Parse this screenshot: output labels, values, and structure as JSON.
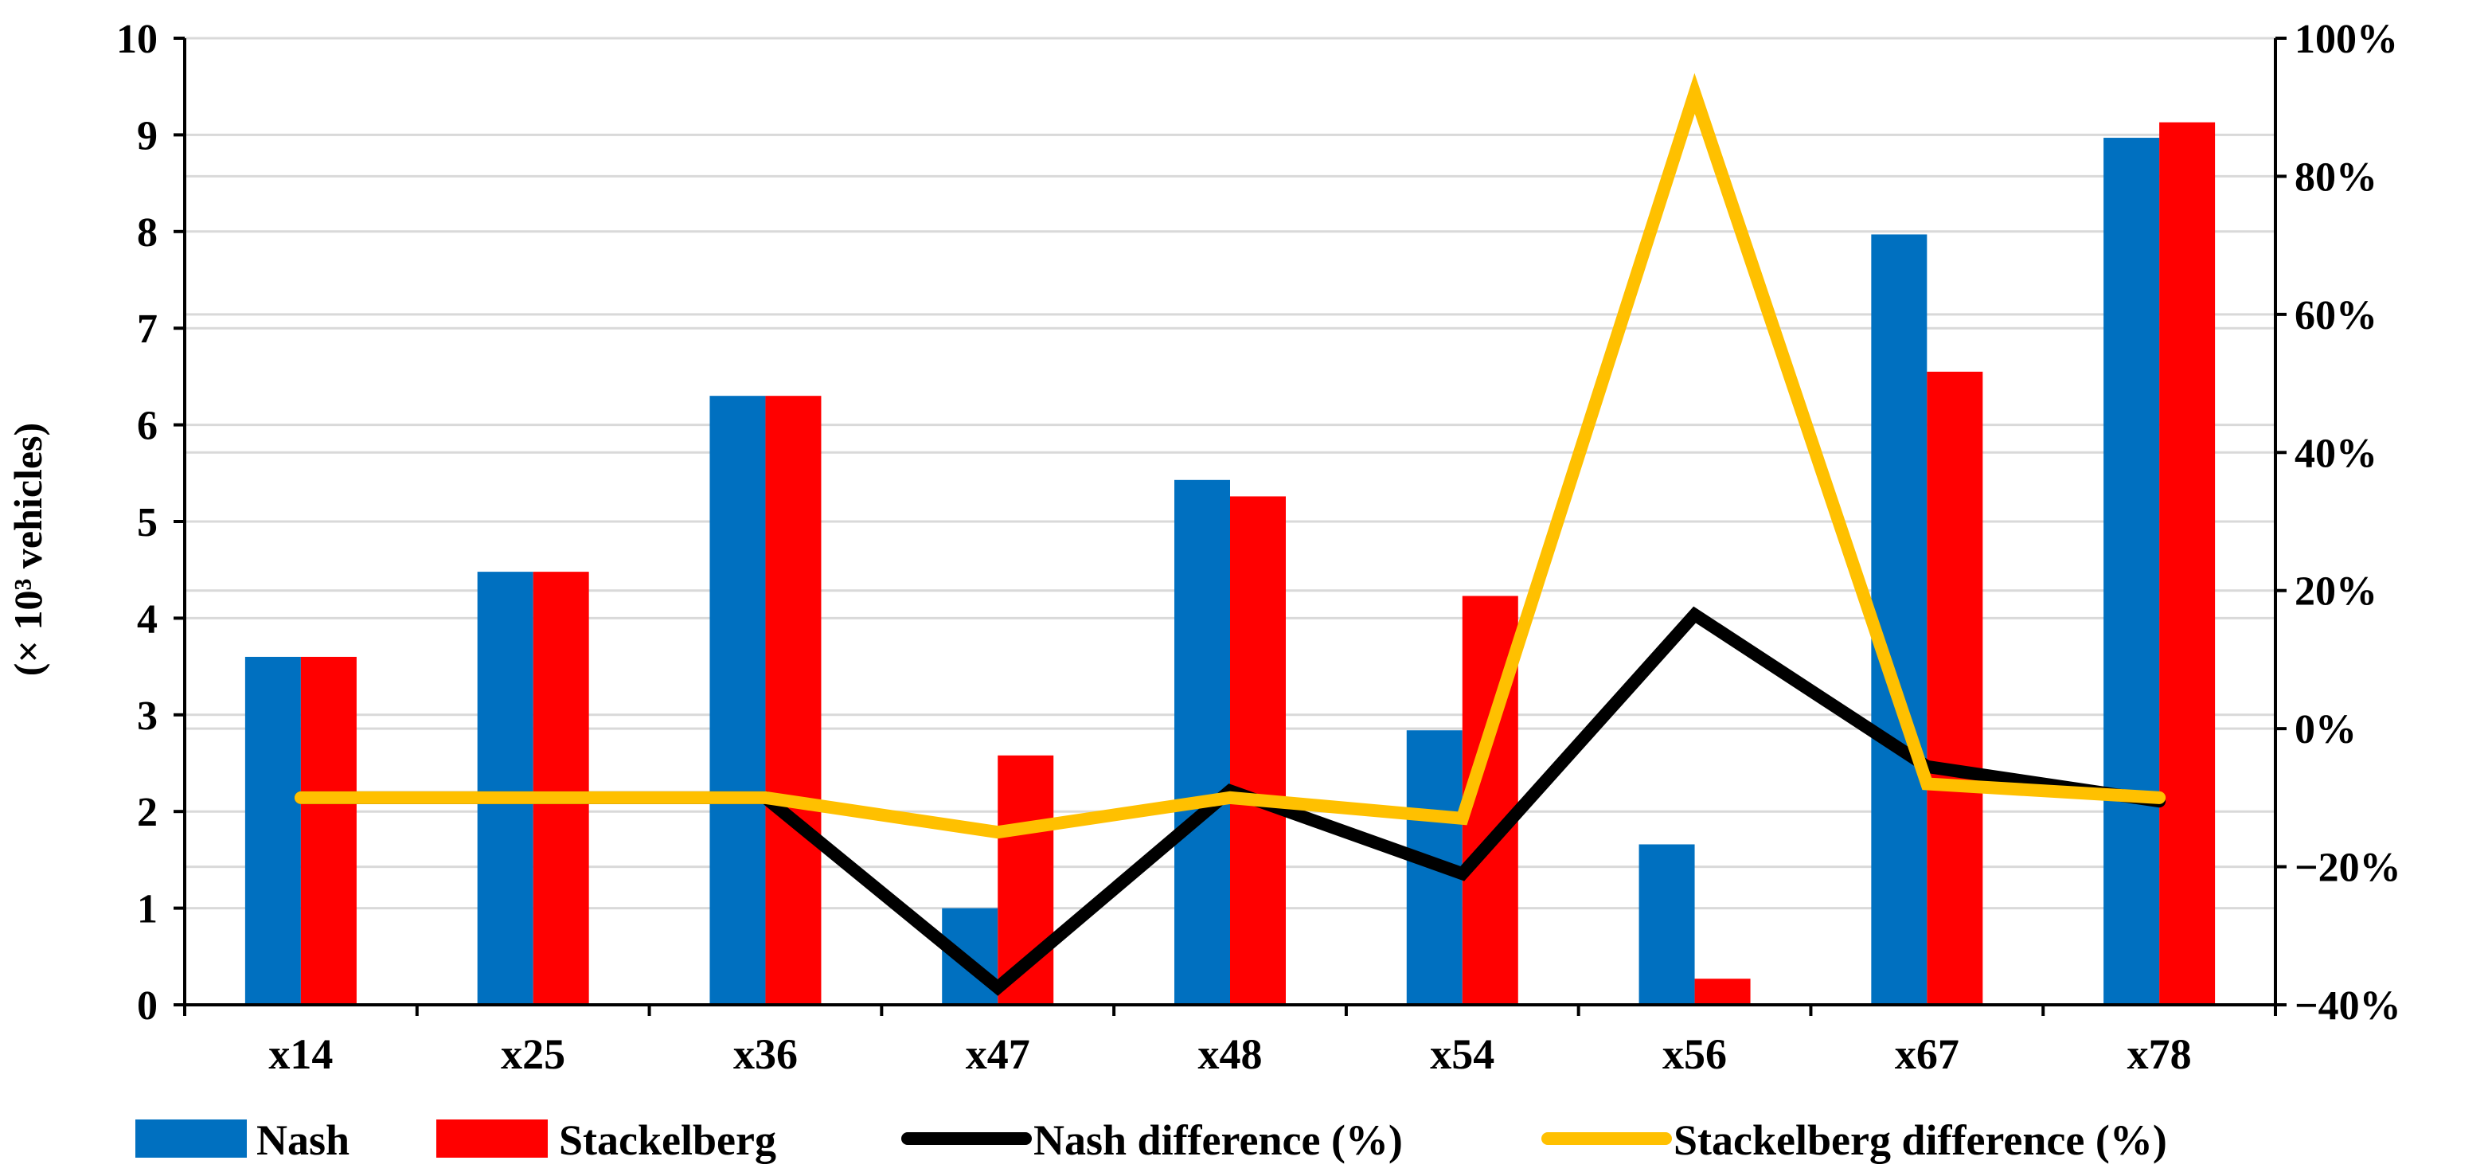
{
  "chart_data": {
    "type": "bar",
    "title": "",
    "xlabel": "",
    "ylabel": "(× 10³ vehicles)",
    "ylim": [
      0,
      10
    ],
    "y2lim": [
      -40,
      100
    ],
    "yticks": [
      "0",
      "1",
      "2",
      "3",
      "4",
      "5",
      "6",
      "7",
      "8",
      "9",
      "10"
    ],
    "y2ticks": [
      "−40%",
      "−20%",
      "0%",
      "20%",
      "40%",
      "60%",
      "80%",
      "100%"
    ],
    "categories": [
      "x14",
      "x25",
      "x36",
      "x47",
      "x48",
      "x54",
      "x56",
      "x67",
      "x78"
    ],
    "grid": true,
    "legend_position": "bottom",
    "series": [
      {
        "name": "Nash",
        "type": "bar",
        "axis": "left",
        "color": "#0070C0",
        "values": [
          3.6,
          4.48,
          6.3,
          1.0,
          5.43,
          2.84,
          1.66,
          7.97,
          8.97
        ]
      },
      {
        "name": "Stackelberg",
        "type": "bar",
        "axis": "left",
        "color": "#FF0000",
        "values": [
          3.6,
          4.48,
          6.3,
          2.58,
          5.26,
          4.23,
          0.27,
          6.55,
          9.13
        ]
      },
      {
        "name": "Nash difference (%)",
        "type": "line",
        "axis": "right",
        "color": "#000000",
        "values": [
          -10,
          -10,
          -10,
          -37.5,
          -9,
          -21,
          16.5,
          -5.5,
          -10.5
        ]
      },
      {
        "name": "Stackelberg difference (%)",
        "type": "line",
        "axis": "right",
        "color": "#FFC000",
        "values": [
          -10,
          -10,
          -10,
          -15,
          -10,
          -13,
          92,
          -8,
          -10
        ]
      }
    ]
  }
}
